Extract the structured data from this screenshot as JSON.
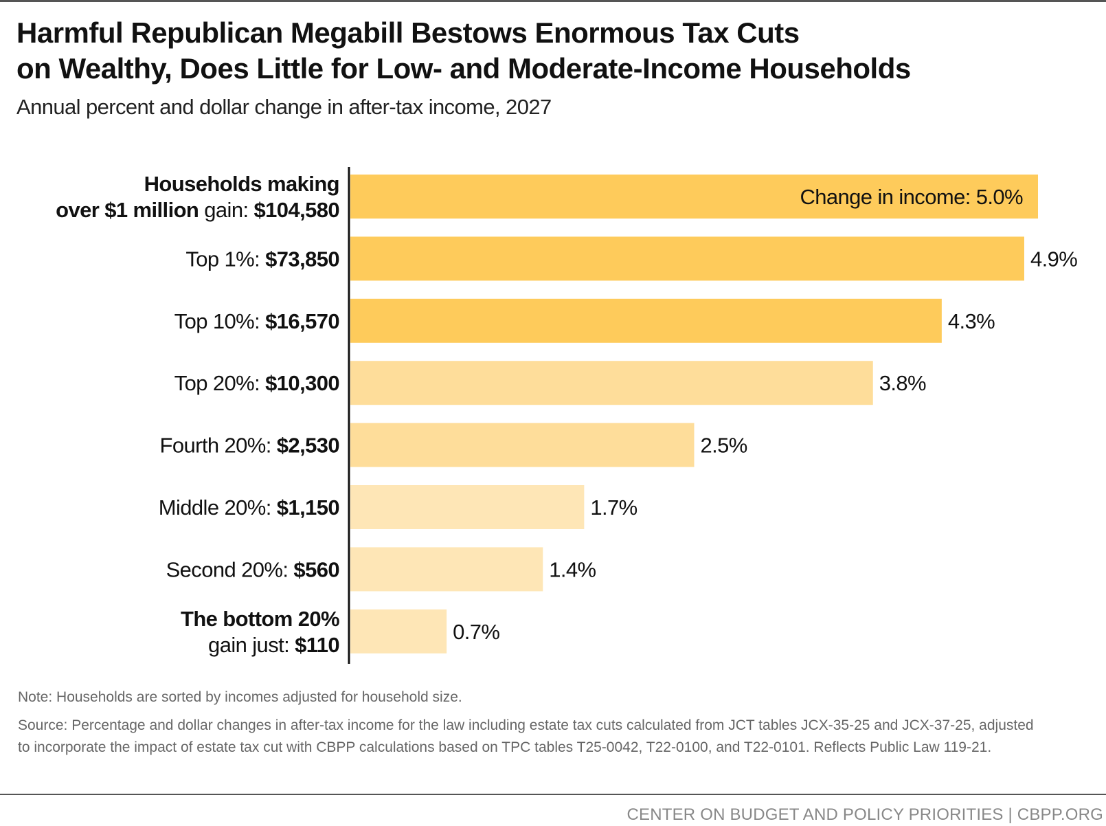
{
  "header": {
    "title_line1": "Harmful Republican Megabill Bestows Enormous Tax Cuts",
    "title_line2": "on Wealthy, Does Little for Low- and Moderate-Income Households",
    "subtitle": "Annual percent and dollar change in after-tax income, 2027"
  },
  "chart_data": {
    "type": "bar",
    "orientation": "horizontal",
    "title": "Harmful Republican Megabill Bestows Enormous Tax Cuts on Wealthy, Does Little for Low- and Moderate-Income Households",
    "subtitle": "Annual percent and dollar change in after-tax income, 2027",
    "xlabel": "",
    "ylabel": "",
    "xlim": [
      0,
      5.0
    ],
    "grid": false,
    "categories": [
      "Households making over $1 million",
      "Top 1%",
      "Top 10%",
      "Top 20%",
      "Fourth 20%",
      "Middle 20%",
      "Second 20%",
      "The bottom 20%"
    ],
    "series": [
      {
        "name": "Change in income (%)",
        "values": [
          5.0,
          4.9,
          4.3,
          3.8,
          2.5,
          1.7,
          1.4,
          0.7
        ]
      },
      {
        "name": "Dollar gain ($)",
        "values": [
          104580,
          73850,
          16570,
          10300,
          2530,
          1150,
          560,
          110
        ]
      }
    ],
    "rows": [
      {
        "lines": [
          [
            {
              "t": "Households making ",
              "b": true
            }
          ],
          [
            {
              "t": "over $1 million",
              "b": true
            },
            {
              "t": " gain: ",
              "b": false
            },
            {
              "t": "$104,580",
              "b": true
            }
          ]
        ],
        "pct": 5.0,
        "pct_label": "Change in income: 5.0%",
        "label_inside": true,
        "color": "#FECB5B"
      },
      {
        "lines": [
          [
            {
              "t": "Top 1%: ",
              "b": false
            },
            {
              "t": "$73,850",
              "b": true
            }
          ]
        ],
        "pct": 4.9,
        "pct_label": "4.9%",
        "label_inside": false,
        "color": "#FECB5B"
      },
      {
        "lines": [
          [
            {
              "t": "Top 10%: ",
              "b": false
            },
            {
              "t": "$16,570",
              "b": true
            }
          ]
        ],
        "pct": 4.3,
        "pct_label": "4.3%",
        "label_inside": false,
        "color": "#FECB5B"
      },
      {
        "lines": [
          [
            {
              "t": "Top 20%: ",
              "b": false
            },
            {
              "t": "$10,300",
              "b": true
            }
          ]
        ],
        "pct": 3.8,
        "pct_label": "3.8%",
        "label_inside": false,
        "color": "#FEDD9A"
      },
      {
        "lines": [
          [
            {
              "t": "Fourth 20%: ",
              "b": false
            },
            {
              "t": "$2,530",
              "b": true
            }
          ]
        ],
        "pct": 2.5,
        "pct_label": "2.5%",
        "label_inside": false,
        "color": "#FEDD9A"
      },
      {
        "lines": [
          [
            {
              "t": "Middle 20%: ",
              "b": false
            },
            {
              "t": "$1,150",
              "b": true
            }
          ]
        ],
        "pct": 1.7,
        "pct_label": "1.7%",
        "label_inside": false,
        "color": "#FEE6B6"
      },
      {
        "lines": [
          [
            {
              "t": "Second 20%: ",
              "b": false
            },
            {
              "t": "$560",
              "b": true
            }
          ]
        ],
        "pct": 1.4,
        "pct_label": "1.4%",
        "label_inside": false,
        "color": "#FEE6B6"
      },
      {
        "lines": [
          [
            {
              "t": "The bottom 20%",
              "b": true
            }
          ],
          [
            {
              "t": "gain just: ",
              "b": false
            },
            {
              "t": "$110",
              "b": true
            }
          ]
        ],
        "pct": 0.7,
        "pct_label": "0.7%",
        "label_inside": false,
        "color": "#FEE6B6"
      }
    ]
  },
  "footnotes": {
    "note": "Note:  Households are sorted by incomes adjusted for household size.",
    "source": "Source: Percentage and dollar changes in after-tax income for the law including estate tax cuts calculated from JCT tables JCX-35-25 and JCX-37-25, adjusted to incorporate the impact of estate tax cut with CBPP calculations based on TPC tables T25-0042, T22-0100, and T22-0101. Reflects Public Law 119-21."
  },
  "footer": {
    "credit": "CENTER ON BUDGET AND POLICY PRIORITIES | CBPP.ORG"
  }
}
